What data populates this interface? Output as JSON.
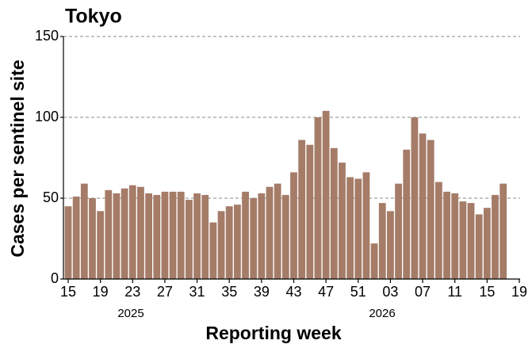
{
  "chart_data": {
    "type": "bar",
    "title": "Tokyo",
    "xlabel": "Reporting week",
    "ylabel": "Cases per sentinel site",
    "annotations": [
      "2025",
      "2026"
    ],
    "categories": [
      "15",
      null,
      null,
      null,
      "19",
      null,
      null,
      null,
      "23",
      null,
      null,
      null,
      "27",
      null,
      null,
      null,
      "31",
      null,
      null,
      null,
      "35",
      null,
      null,
      null,
      "39",
      null,
      null,
      null,
      "43",
      null,
      null,
      null,
      "47",
      null,
      null,
      null,
      "51",
      null,
      null,
      null,
      "03",
      null,
      null,
      null,
      "07",
      null,
      null,
      null,
      "11",
      null,
      null,
      null,
      "15",
      null,
      null,
      null,
      "19"
    ],
    "values": [
      45,
      51,
      59,
      50,
      42,
      55,
      53,
      56,
      58,
      57,
      53,
      52,
      54,
      54,
      54,
      49,
      53,
      52,
      35,
      42,
      45,
      46,
      54,
      50,
      53,
      57,
      59,
      52,
      66,
      86,
      83,
      100,
      104,
      81,
      72,
      63,
      62,
      66,
      22,
      47,
      42,
      59,
      80,
      100,
      90,
      86,
      60,
      54,
      53,
      48,
      47,
      40,
      44,
      52,
      59,
      null,
      null
    ],
    "color": "#a57c68",
    "ylim": [
      0,
      150
    ],
    "yticks": [
      0,
      50,
      100,
      150
    ],
    "grid": true
  }
}
